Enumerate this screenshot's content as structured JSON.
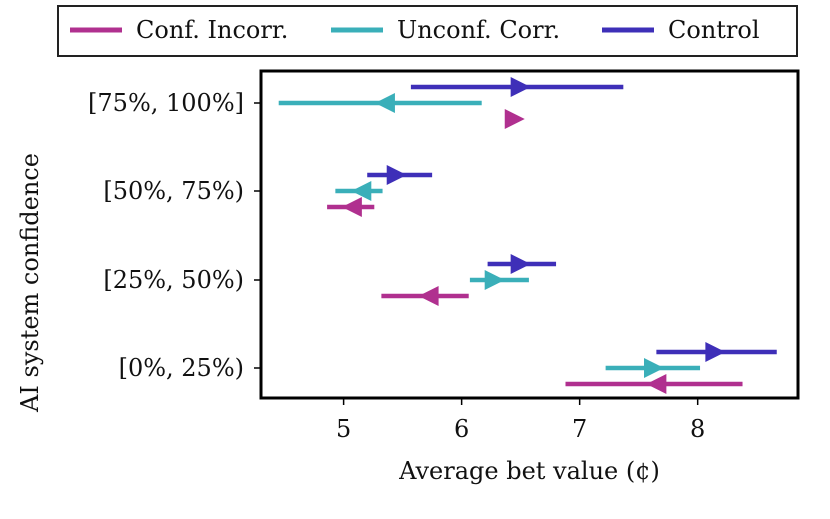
{
  "chart_data": {
    "type": "interval",
    "xlabel": "Average bet value (¢)",
    "ylabel": "AI system confidence",
    "categories": [
      "[0%, 25%)",
      "[25%, 50%)",
      "[50%, 75%)",
      "[75%, 100%]"
    ],
    "xlim": [
      4.3,
      8.85
    ],
    "xticks": [
      5,
      6,
      7,
      8
    ],
    "legend_position": "top",
    "series": [
      {
        "name": "Conf. Incorr.",
        "color": "#b0308f",
        "points": [
          {
            "category": "[0%, 25%)",
            "value": 7.65,
            "low": 6.88,
            "high": 8.38,
            "direction": "left"
          },
          {
            "category": "[25%, 50%)",
            "value": 5.72,
            "low": 5.32,
            "high": 6.06,
            "direction": "left"
          },
          {
            "category": "[50%, 75%)",
            "value": 5.07,
            "low": 4.86,
            "high": 5.26,
            "direction": "left"
          },
          {
            "category": "[75%, 100%]",
            "value": 6.45,
            "low": null,
            "high": null,
            "direction": "right"
          }
        ]
      },
      {
        "name": "Unconf. Corr.",
        "color": "#3aafb9",
        "points": [
          {
            "category": "[0%, 25%)",
            "value": 7.63,
            "low": 7.22,
            "high": 8.02,
            "direction": "right"
          },
          {
            "category": "[25%, 50%)",
            "value": 6.28,
            "low": 6.07,
            "high": 6.57,
            "direction": "right"
          },
          {
            "category": "[50%, 75%)",
            "value": 5.15,
            "low": 4.93,
            "high": 5.33,
            "direction": "left"
          },
          {
            "category": "[75%, 100%]",
            "value": 5.35,
            "low": 4.45,
            "high": 6.17,
            "direction": "left"
          }
        ]
      },
      {
        "name": "Control",
        "color": "#3e2fb8",
        "points": [
          {
            "category": "[0%, 25%)",
            "value": 8.15,
            "low": 7.65,
            "high": 8.67,
            "direction": "right"
          },
          {
            "category": "[25%, 50%)",
            "value": 6.5,
            "low": 6.22,
            "high": 6.8,
            "direction": "right"
          },
          {
            "category": "[50%, 75%)",
            "value": 5.45,
            "low": 5.2,
            "high": 5.75,
            "direction": "right"
          },
          {
            "category": "[75%, 100%]",
            "value": 6.5,
            "low": 5.57,
            "high": 7.37,
            "direction": "right"
          }
        ]
      }
    ]
  }
}
